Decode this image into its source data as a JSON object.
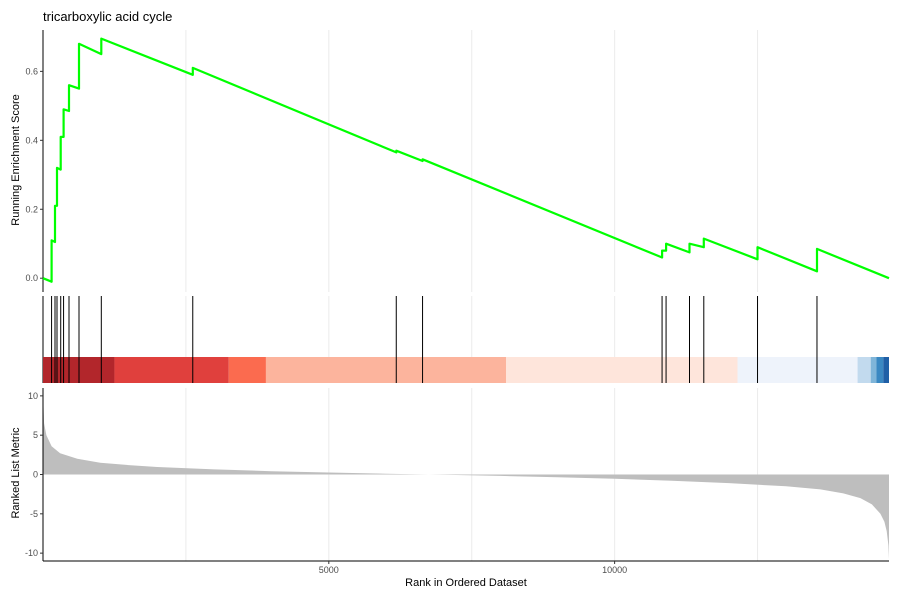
{
  "chart_data": {
    "type": "line",
    "title": "tricarboxylic acid cycle",
    "x_range": [
      0,
      14800
    ],
    "x_ticks": [
      5000,
      10000
    ],
    "xlabel": "Rank in Ordered Dataset",
    "colors": {
      "es_line": "#00ff00",
      "metric_fill": "#bebebe",
      "grid": "#ebebeb",
      "hits": "#000000",
      "color_bands": [
        "#b2262b",
        "#e0403d",
        "#fb6b4f",
        "#fcb49d",
        "#fee5db",
        "#eef3fb",
        "#c2daee",
        "#7fb5d9",
        "#3a88c2",
        "#1f5fa6"
      ]
    },
    "running_es": {
      "ylabel": "Running Enrichment Score",
      "ylim": [
        -0.04,
        0.72
      ],
      "y_ticks": [
        0.0,
        0.2,
        0.4,
        0.6
      ],
      "x": [
        0,
        150,
        150,
        210,
        210,
        245,
        245,
        310,
        310,
        360,
        360,
        455,
        455,
        630,
        630,
        1020,
        1020,
        2620,
        2620,
        6180,
        6180,
        6640,
        6640,
        10830,
        10830,
        10900,
        10900,
        11310,
        11310,
        11560,
        11560,
        12500,
        12500,
        13540,
        13540,
        14800
      ],
      "y": [
        0.0,
        -0.01,
        0.11,
        0.105,
        0.21,
        0.21,
        0.32,
        0.315,
        0.41,
        0.41,
        0.49,
        0.485,
        0.56,
        0.55,
        0.68,
        0.65,
        0.695,
        0.59,
        0.61,
        0.365,
        0.37,
        0.34,
        0.345,
        0.06,
        0.08,
        0.08,
        0.1,
        0.075,
        0.1,
        0.09,
        0.115,
        0.055,
        0.09,
        0.02,
        0.085,
        0.0
      ]
    },
    "hits": [
      150,
      210,
      245,
      310,
      360,
      455,
      630,
      1020,
      2620,
      6180,
      6640,
      10830,
      10900,
      11310,
      11560,
      12500,
      13540
    ],
    "color_band_breaks": [
      0,
      1250,
      3250,
      3900,
      8100,
      12150,
      14250,
      14480,
      14580,
      14700,
      14800
    ],
    "ranked_metric": {
      "ylabel": "Ranked List Metric",
      "ylim": [
        -11,
        11
      ],
      "y_ticks": [
        10,
        5,
        0,
        -5,
        -10
      ],
      "x": [
        0,
        20,
        60,
        150,
        300,
        600,
        1000,
        1500,
        2000,
        3000,
        4000,
        5000,
        6000,
        7000,
        8000,
        9000,
        10000,
        11000,
        12000,
        13000,
        13600,
        14000,
        14300,
        14500,
        14650,
        14720,
        14760,
        14790,
        14800
      ],
      "y": [
        10.5,
        6.5,
        5.0,
        3.6,
        2.7,
        2.0,
        1.5,
        1.2,
        0.95,
        0.65,
        0.42,
        0.25,
        0.1,
        -0.03,
        -0.18,
        -0.35,
        -0.55,
        -0.8,
        -1.1,
        -1.5,
        -1.9,
        -2.4,
        -3.0,
        -3.8,
        -5.0,
        -6.0,
        -7.2,
        -9.0,
        -10.8
      ]
    }
  }
}
